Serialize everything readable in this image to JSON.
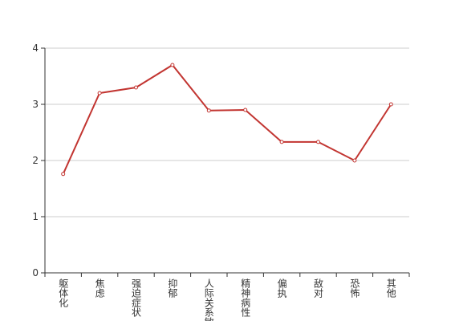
{
  "chart_data": {
    "type": "line",
    "categories": [
      "躯体化",
      "焦虑",
      "强迫症状",
      "抑郁",
      "人际关系敏感",
      "精神病性",
      "偏执",
      "敌对",
      "恐怖",
      "其他"
    ],
    "values": [
      1.76,
      3.2,
      3.3,
      3.7,
      2.89,
      2.9,
      2.33,
      2.33,
      2.0,
      3.0
    ],
    "color": "#c23531",
    "ylim": [
      0,
      4
    ],
    "yticks": [
      0,
      1,
      2,
      3,
      4
    ],
    "grid": true
  }
}
